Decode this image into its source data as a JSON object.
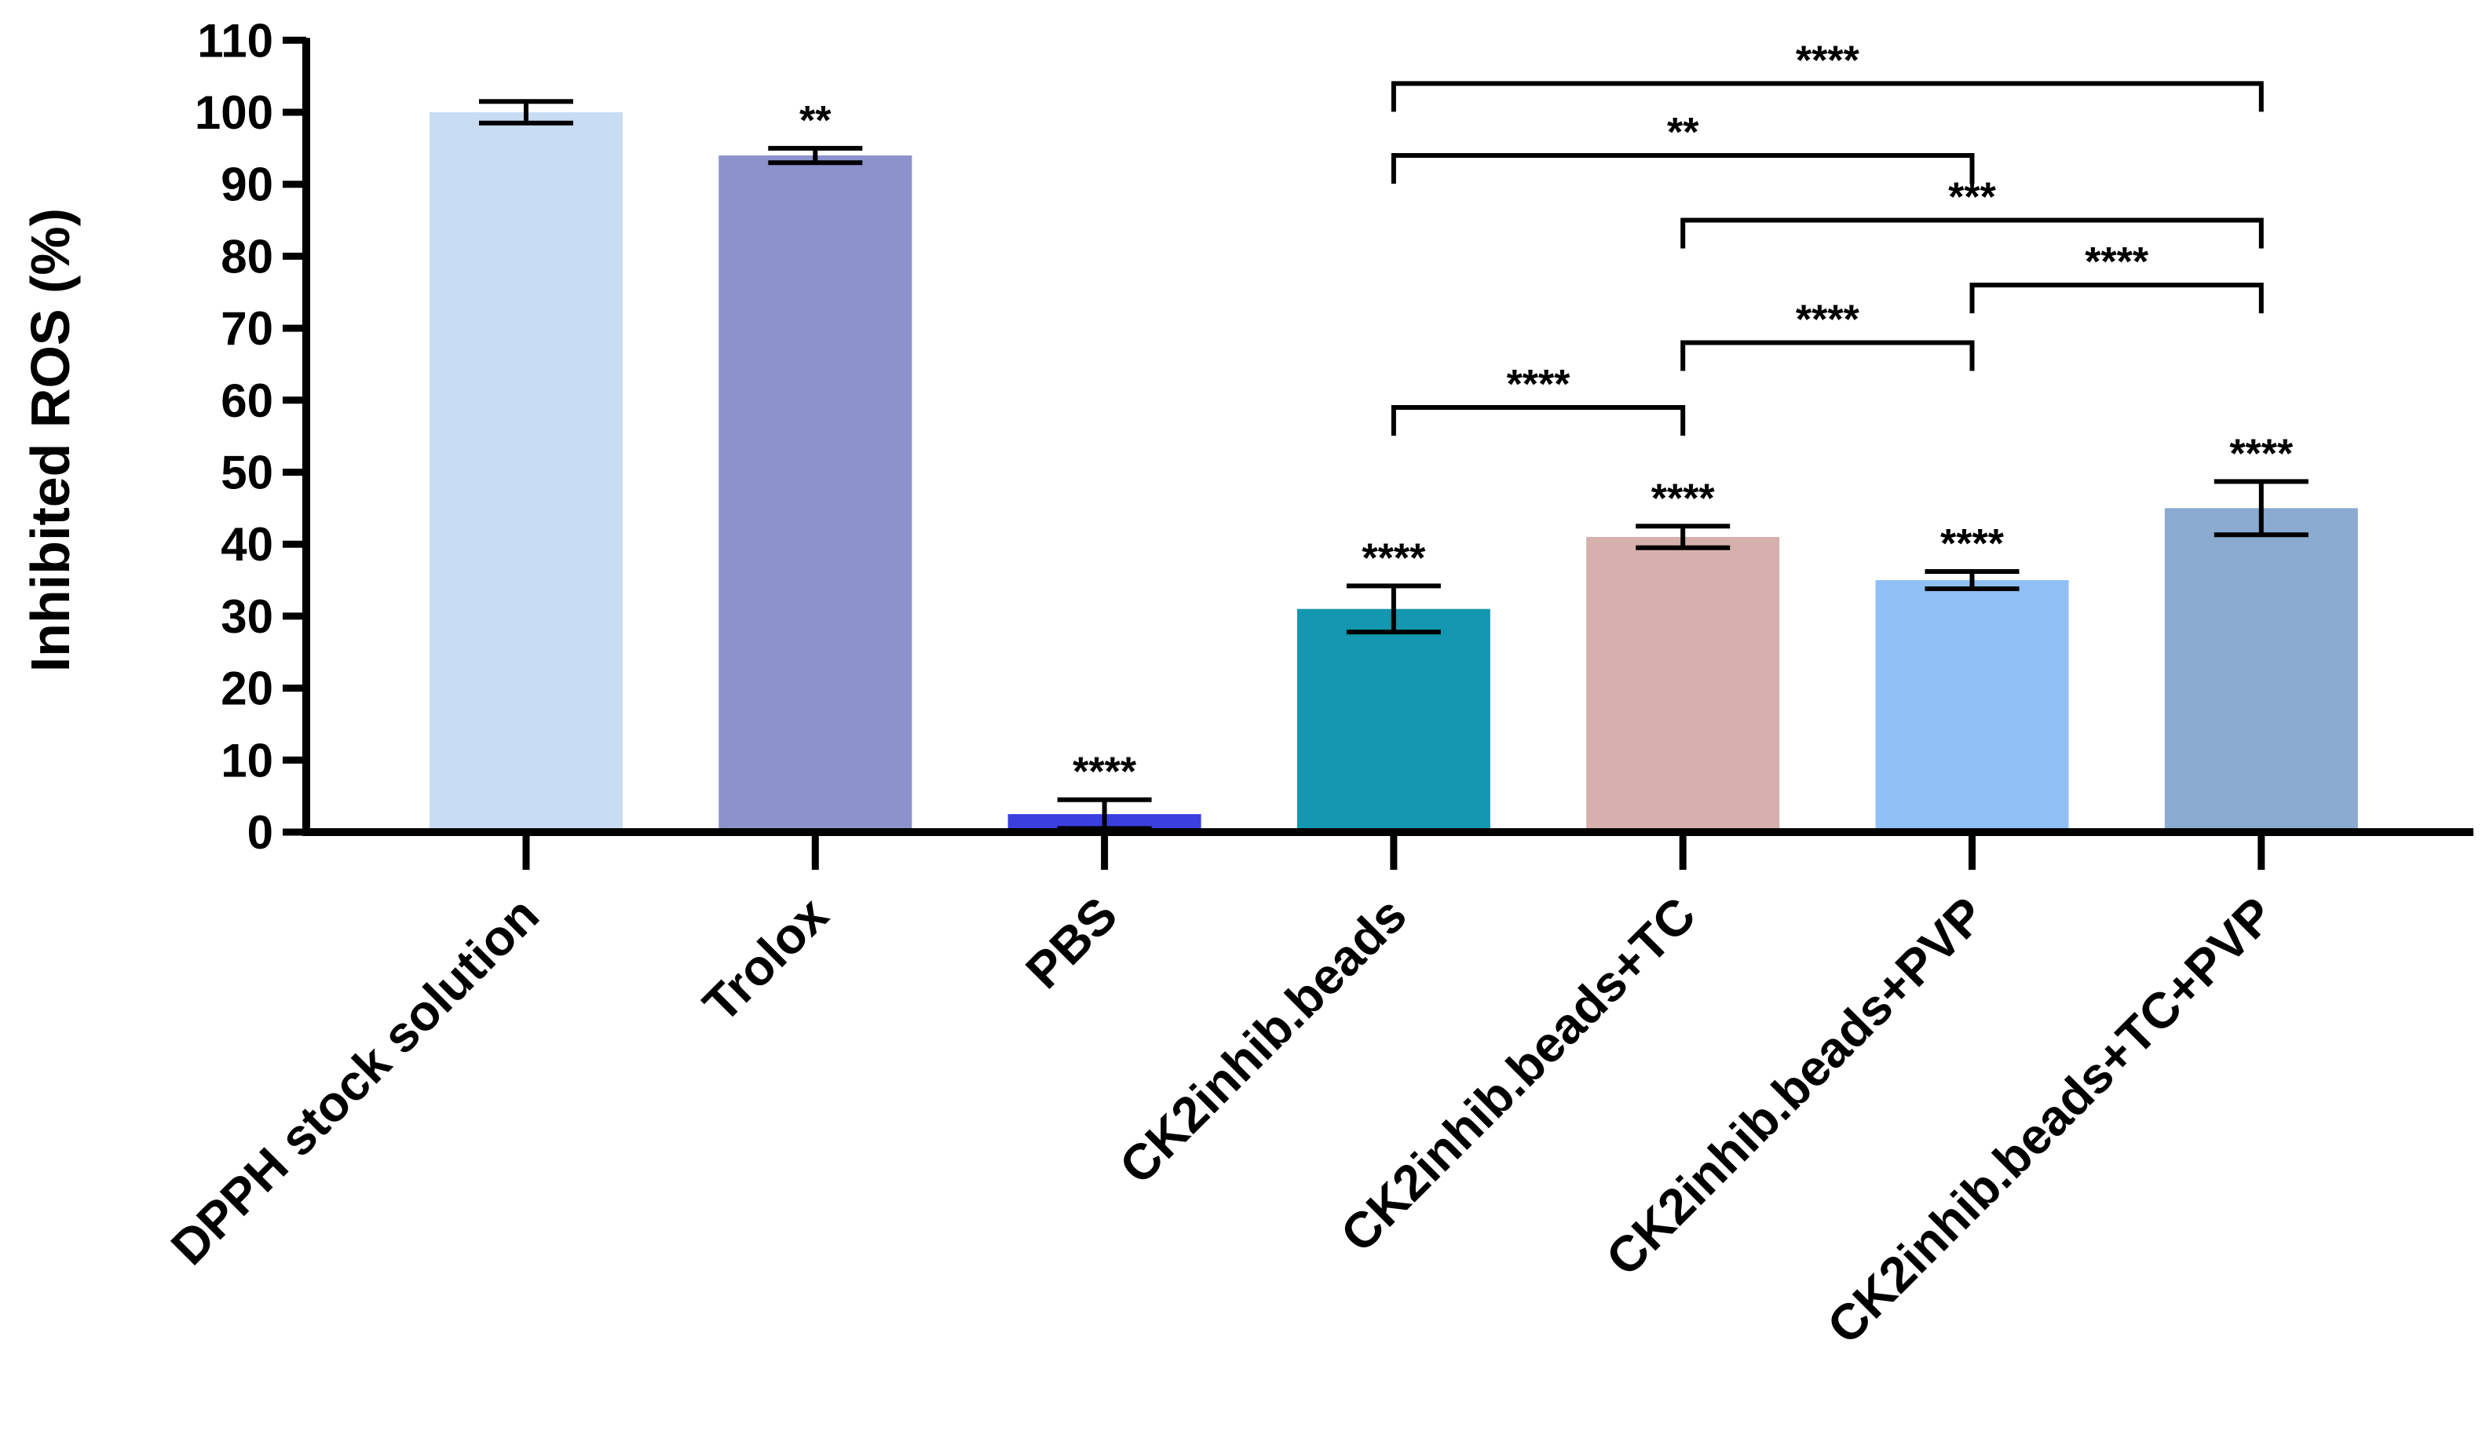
{
  "chart_data": {
    "type": "bar",
    "title": "",
    "xlabel": "",
    "ylabel": "Inhibited ROS (%)",
    "ylim": [
      0,
      110
    ],
    "yticks": [
      0,
      10,
      20,
      30,
      40,
      50,
      60,
      70,
      80,
      90,
      100,
      110
    ],
    "grid": false,
    "categories": [
      "DPPH stock solution",
      "Trolox",
      "PBS",
      "CK2inhib.beads",
      "CK2inhib.beads+TC",
      "CK2inhib.beads+PVP",
      "CK2inhib.beads+TC+PVP"
    ],
    "values": [
      100,
      94,
      2.5,
      31,
      41,
      35,
      45
    ],
    "errors": [
      1.5,
      1,
      2,
      3.2,
      1.5,
      1.2,
      3.7
    ],
    "colors": [
      "#c8dcf4",
      "#8b92cc",
      "#3b3fe0",
      "#1497b0",
      "#d5b0ad",
      "#90bff5",
      "#8aaacf"
    ],
    "significance": [
      "",
      "**",
      "****",
      "****",
      "****",
      "****",
      "****"
    ],
    "comparisons": [
      {
        "from": 3,
        "to": 6,
        "label": "****",
        "y": 104
      },
      {
        "from": 3,
        "to": 5,
        "label": "**",
        "y": 94
      },
      {
        "from": 4,
        "to": 6,
        "label": "***",
        "y": 85
      },
      {
        "from": 5,
        "to": 6,
        "label": "****",
        "y": 76
      },
      {
        "from": 4,
        "to": 5,
        "label": "****",
        "y": 68
      },
      {
        "from": 3,
        "to": 4,
        "label": "****",
        "y": 59
      }
    ]
  }
}
